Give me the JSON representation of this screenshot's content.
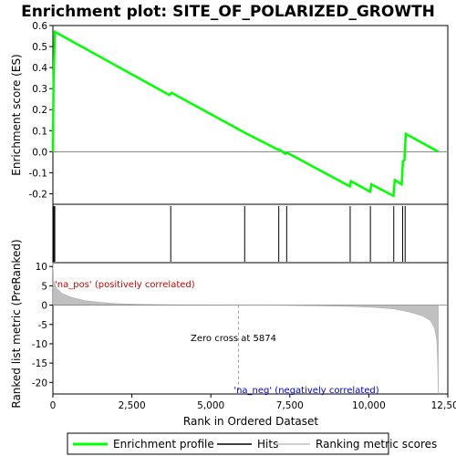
{
  "chart_data": {
    "type": "line",
    "title": "Enrichment plot: SITE_OF_POLARIZED_GROWTH",
    "x_range": [
      0,
      12500
    ],
    "x_ticks": [
      0,
      2500,
      5000,
      7500,
      10000,
      12500
    ],
    "x_tick_labels": [
      "0",
      "2,500",
      "5,000",
      "7,500",
      "10,000",
      "12,500"
    ],
    "xlabel": "Rank in Ordered Dataset",
    "upper_panel": {
      "ylabel": "Enrichment score (ES)",
      "ylim": [
        -0.25,
        0.6
      ],
      "y_ticks": [
        -0.2,
        -0.1,
        0.0,
        0.1,
        0.2,
        0.3,
        0.4,
        0.5,
        0.6
      ],
      "y_tick_labels": [
        "-0.2",
        "-0.1",
        "0.0",
        "0.1",
        "0.2",
        "0.3",
        "0.4",
        "0.5",
        "0.6"
      ],
      "series": [
        {
          "name": "Enrichment profile",
          "color": "#00ff00",
          "x": [
            0,
            20,
            60,
            3680,
            3760,
            6080,
            7120,
            7180,
            7350,
            7420,
            9400,
            9430,
            10040,
            10080,
            10780,
            10820,
            11040,
            11080,
            11130,
            11170,
            12200
          ],
          "y": [
            0.0,
            0.33,
            0.57,
            0.27,
            0.28,
            0.09,
            0.01,
            0.01,
            -0.01,
            -0.005,
            -0.165,
            -0.14,
            -0.19,
            -0.155,
            -0.21,
            -0.135,
            -0.155,
            -0.045,
            -0.04,
            0.085,
            0.0
          ]
        }
      ]
    },
    "hits": [
      30,
      60,
      3730,
      6070,
      7150,
      7400,
      9410,
      10050,
      10790,
      11070,
      11150
    ],
    "hits_legend": "Hits",
    "lower_panel": {
      "ylabel": "Ranked list metric (PreRanked)",
      "ylim": [
        -23,
        11
      ],
      "y_ticks": [
        -20,
        -15,
        -10,
        -5,
        0,
        5,
        10
      ],
      "y_tick_labels": [
        "-20",
        "-15",
        "-10",
        "-5",
        "0",
        "5",
        "10"
      ],
      "series": [
        {
          "name": "Ranking metric scores",
          "color": "#c0c0c0",
          "x": [
            0,
            20,
            100,
            300,
            600,
            1000,
            1500,
            2000,
            2800,
            3800,
            5000,
            5874,
            7000,
            8500,
            9500,
            10200,
            10800,
            11300,
            11700,
            11950,
            12080,
            12150,
            12180,
            12200
          ],
          "y": [
            11,
            6.5,
            4.5,
            3.0,
            2.0,
            1.2,
            0.7,
            0.4,
            0.2,
            0.1,
            0.03,
            0.0,
            -0.05,
            -0.2,
            -0.35,
            -0.6,
            -1.0,
            -1.8,
            -2.8,
            -4.0,
            -6.0,
            -9.0,
            -15.0,
            -23.0
          ]
        }
      ],
      "zero_cross_label": "Zero cross at 5874",
      "zero_cross": 5874,
      "pos_label": "'na_pos' (positively correlated)",
      "neg_label": "'na_neg' (negatively correlated)"
    },
    "color_bar": [
      {
        "x0": 0,
        "x1": 400,
        "color": "#dd0000"
      },
      {
        "x0": 400,
        "x1": 1300,
        "color": "#f04848"
      },
      {
        "x0": 1300,
        "x1": 1750,
        "color": "#f56a6a"
      },
      {
        "x0": 1750,
        "x1": 2800,
        "color": "#f99090"
      },
      {
        "x0": 2800,
        "x1": 4200,
        "color": "#fbb6c6"
      },
      {
        "x0": 4200,
        "x1": 5874,
        "color": "#fcc6dc"
      },
      {
        "x0": 5874,
        "x1": 9200,
        "color": "#dcdcfa"
      },
      {
        "x0": 9200,
        "x1": 9900,
        "color": "#c8c8f8"
      },
      {
        "x0": 9900,
        "x1": 10350,
        "color": "#b4b4f4"
      },
      {
        "x0": 10350,
        "x1": 10750,
        "color": "#8a8af0"
      },
      {
        "x0": 10750,
        "x1": 11200,
        "color": "#6464e6"
      },
      {
        "x0": 11200,
        "x1": 11850,
        "color": "#5050e0"
      },
      {
        "x0": 11850,
        "x1": 12200,
        "color": "#2222bb"
      }
    ],
    "legend": [
      {
        "name": "Enrichment profile",
        "color": "#00ff00"
      },
      {
        "name": "Hits",
        "color": "#000000"
      },
      {
        "name": "Ranking metric scores",
        "color": "#c0c0c0"
      }
    ],
    "legend_position": "bottom"
  }
}
